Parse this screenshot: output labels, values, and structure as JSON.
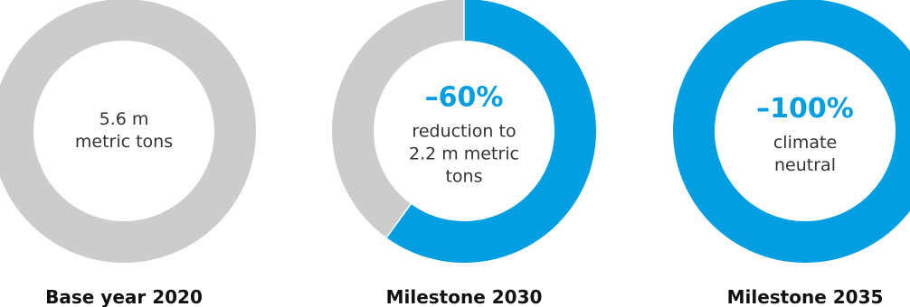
{
  "chart_data": [
    {
      "type": "pie",
      "variant": "donut",
      "caption": "Base year 2020",
      "center_headline": "",
      "center_lines": [
        "5.6 m",
        "metric tons"
      ],
      "reduction_share": 0,
      "colors": {
        "reduced": "#019ee2",
        "remaining": "#cccccc"
      }
    },
    {
      "type": "pie",
      "variant": "donut",
      "caption": "Milestone 2030",
      "center_headline": "–60%",
      "center_lines": [
        "reduction to",
        "2.2 m metric",
        "tons"
      ],
      "reduction_share": 0.6,
      "colors": {
        "reduced": "#019ee2",
        "remaining": "#cccccc"
      }
    },
    {
      "type": "pie",
      "variant": "donut",
      "caption": "Milestone 2035",
      "center_headline": "–100%",
      "center_lines": [
        "climate",
        "neutral"
      ],
      "reduction_share": 1.0,
      "colors": {
        "reduced": "#019ee2",
        "remaining": "#cccccc"
      }
    }
  ]
}
